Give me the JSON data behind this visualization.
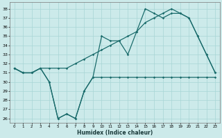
{
  "xlabel": "Humidex (Indice chaleur)",
  "xlim": [
    -0.5,
    23.5
  ],
  "ylim": [
    25.5,
    38.7
  ],
  "yticks": [
    26,
    27,
    28,
    29,
    30,
    31,
    32,
    33,
    34,
    35,
    36,
    37,
    38
  ],
  "xticks": [
    0,
    1,
    2,
    3,
    4,
    5,
    6,
    7,
    8,
    9,
    10,
    11,
    12,
    13,
    14,
    15,
    16,
    17,
    18,
    19,
    20,
    21,
    22,
    23
  ],
  "bg_color": "#cceaea",
  "grid_color": "#a8d5d5",
  "line_color": "#1a6b6b",
  "line1_y": [
    31.5,
    31.0,
    31.0,
    31.5,
    30.0,
    26.0,
    26.5,
    26.0,
    29.0,
    30.5,
    30.5,
    30.5,
    30.5,
    30.5,
    30.5,
    30.5,
    30.5,
    30.5,
    30.5,
    30.5,
    30.5,
    30.5,
    30.5,
    30.5
  ],
  "line2_y": [
    31.5,
    31.0,
    31.0,
    31.5,
    30.0,
    26.0,
    26.5,
    26.0,
    29.0,
    30.5,
    35.0,
    34.5,
    34.5,
    33.0,
    35.5,
    38.0,
    37.5,
    37.0,
    37.5,
    37.5,
    37.0,
    35.0,
    33.0,
    31.0
  ],
  "line3_y": [
    31.5,
    31.0,
    31.0,
    31.5,
    31.5,
    31.5,
    31.5,
    32.0,
    32.5,
    33.0,
    33.5,
    34.0,
    34.5,
    35.0,
    35.5,
    36.5,
    37.0,
    37.5,
    38.0,
    37.5,
    37.0,
    35.0,
    33.0,
    31.0
  ],
  "lw": 0.9,
  "ms": 1.8
}
